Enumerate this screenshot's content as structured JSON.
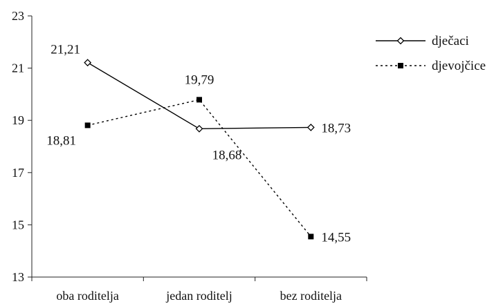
{
  "chart_data": {
    "type": "line",
    "categories": [
      "oba roditelja",
      "jedan roditelj",
      "bez roditelja"
    ],
    "ylim": [
      13,
      23
    ],
    "yticks": [
      13,
      15,
      17,
      19,
      21,
      23
    ],
    "ytick_labels": [
      "13",
      "15",
      "17",
      "19",
      "21",
      "23"
    ],
    "grid": false,
    "legend_position": "top-right",
    "series": [
      {
        "name": "dječaci",
        "values": [
          21.21,
          18.68,
          18.73
        ],
        "value_labels": [
          "21,21",
          "18,68",
          "18,73"
        ],
        "line_style": "solid",
        "marker": "open-diamond",
        "color": "#000000"
      },
      {
        "name": "djevojčice",
        "values": [
          18.81,
          19.79,
          14.55
        ],
        "value_labels": [
          "18,81",
          "19,79",
          "14,55"
        ],
        "line_style": "dotted",
        "marker": "filled-square",
        "color": "#000000"
      }
    ]
  }
}
